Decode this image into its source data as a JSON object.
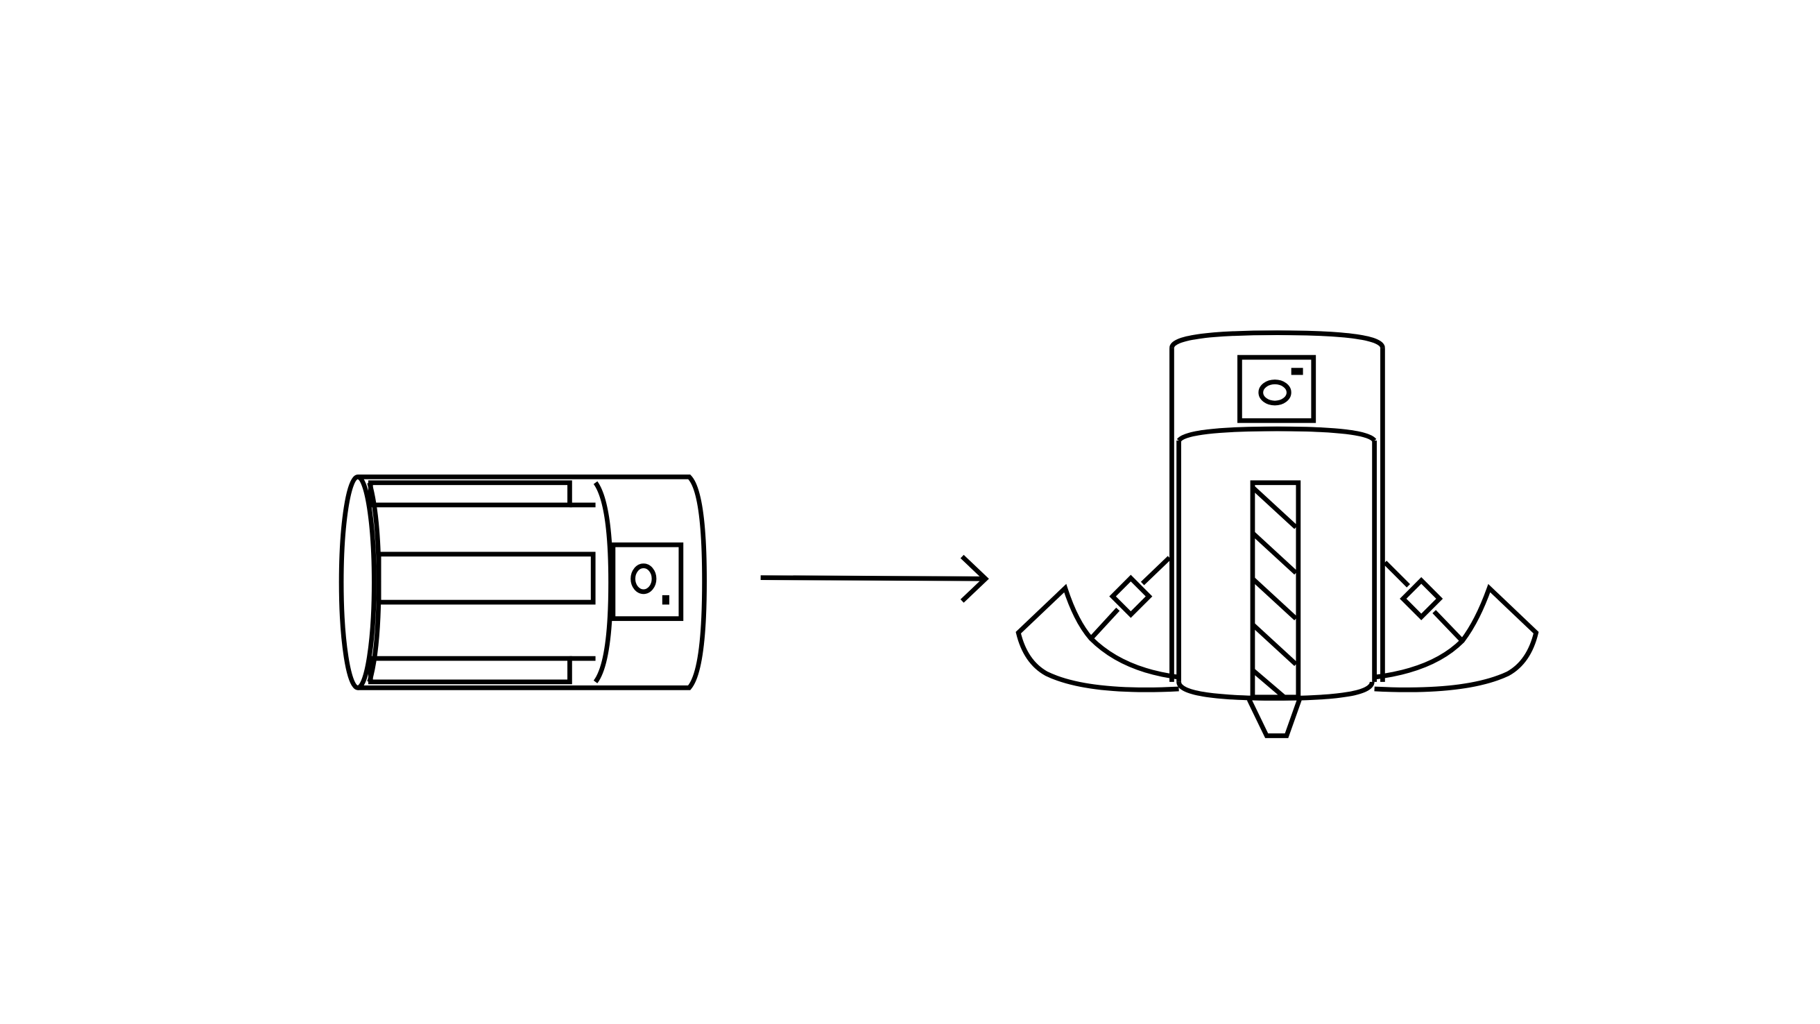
{
  "diagram": {
    "background": "#ffffff",
    "stroke_color": "#000000",
    "figures": [
      {
        "name": "stowed-device",
        "description_visible": false
      },
      {
        "name": "deployed-device",
        "description_visible": false
      }
    ],
    "icons": [
      "camera-icon",
      "arrow-right-icon",
      "anchor-arm-icon",
      "spike-icon"
    ]
  }
}
